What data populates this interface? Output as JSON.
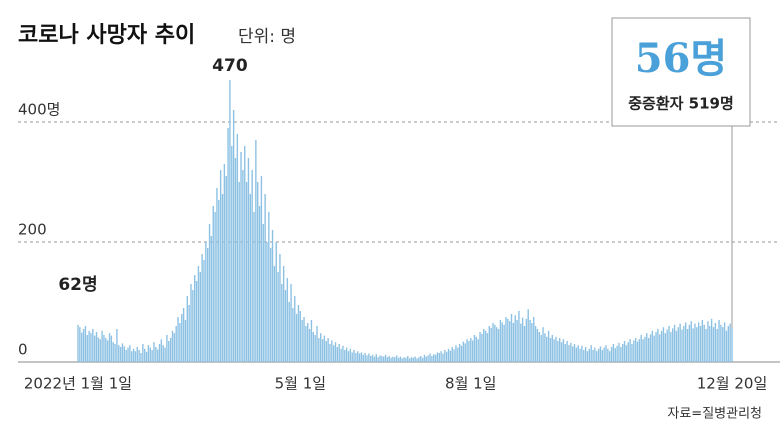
{
  "chart_data": {
    "type": "bar",
    "title": "코로나 사망자 추이",
    "unit_note": "단위: 명",
    "source": "자료=질병관리청",
    "annotation": "중증환자 519명",
    "color": "#8cc1e4",
    "highlight_color": "#4aa0d8",
    "grid": true,
    "ylim": [
      0,
      500
    ],
    "yticks": [
      0,
      200,
      {
        "value": 400,
        "label": "400명"
      }
    ],
    "categories": [
      "2022년 1월 1일",
      null,
      null,
      null,
      null,
      null,
      null,
      null,
      null,
      null,
      null,
      null,
      null,
      null,
      null,
      null,
      null,
      null,
      null,
      null,
      null,
      null,
      null,
      null,
      null,
      null,
      null,
      null,
      null,
      null,
      null,
      null,
      null,
      null,
      null,
      null,
      null,
      null,
      null,
      null,
      null,
      null,
      null,
      null,
      null,
      null,
      null,
      null,
      null,
      null,
      null,
      null,
      null,
      null,
      null,
      null,
      null,
      null,
      null,
      null,
      null,
      null,
      null,
      null,
      null,
      null,
      null,
      null,
      null,
      null,
      null,
      null,
      null,
      null,
      null,
      null,
      null,
      null,
      null,
      null,
      null,
      null,
      null,
      null,
      null,
      null,
      null,
      null,
      null,
      null,
      null,
      null,
      null,
      null,
      null,
      null,
      null,
      null,
      null,
      null,
      null,
      null,
      null,
      null,
      null,
      null,
      null,
      null,
      null,
      null,
      null,
      null,
      null,
      null,
      null,
      null,
      null,
      null,
      null,
      null,
      "5월 1일",
      null,
      null,
      null,
      null,
      null,
      null,
      null,
      null,
      null,
      null,
      null,
      null,
      null,
      null,
      null,
      null,
      null,
      null,
      null,
      null,
      null,
      null,
      null,
      null,
      null,
      null,
      null,
      null,
      null,
      null,
      null,
      null,
      null,
      null,
      null,
      null,
      null,
      null,
      null,
      null,
      null,
      null,
      null,
      null,
      null,
      null,
      null,
      null,
      null,
      null,
      null,
      null,
      null,
      null,
      null,
      null,
      null,
      null,
      null,
      null,
      null,
      null,
      null,
      null,
      null,
      null,
      null,
      null,
      null,
      null,
      null,
      null,
      null,
      null,
      null,
      null,
      null,
      null,
      null,
      null,
      null,
      null,
      null,
      null,
      null,
      null,
      null,
      null,
      null,
      null,
      null,
      "8월 1일",
      null,
      null,
      null,
      null,
      null,
      null,
      null,
      null,
      null,
      null,
      null,
      null,
      null,
      null,
      null,
      null,
      null,
      null,
      null,
      null,
      null,
      null,
      null,
      null,
      null,
      null,
      null,
      null,
      null,
      null,
      null,
      null,
      null,
      null,
      null,
      null,
      null,
      null,
      null,
      null,
      null,
      null,
      null,
      null,
      null,
      null,
      null,
      null,
      null,
      null,
      null,
      null,
      null,
      null,
      null,
      null,
      null,
      null,
      null,
      null,
      null,
      null,
      null,
      null,
      null,
      null,
      null,
      null,
      null,
      null,
      null,
      null,
      null,
      null,
      null,
      null,
      null,
      null,
      null,
      null,
      null,
      null,
      null,
      null,
      null,
      null,
      null,
      null,
      null,
      null,
      null,
      null,
      null,
      null,
      null,
      null,
      null,
      null,
      null,
      null,
      null,
      null,
      null,
      null,
      null,
      null,
      null,
      null,
      null,
      null,
      null,
      null,
      null,
      null,
      null,
      null,
      null,
      null,
      null,
      null,
      null,
      null,
      null,
      null,
      null,
      null,
      null,
      null,
      null,
      null,
      null,
      null,
      null,
      null,
      null,
      null,
      null,
      null,
      null,
      null,
      "12월 20일"
    ],
    "values": [
      62,
      58,
      49,
      55,
      60,
      45,
      52,
      48,
      55,
      44,
      50,
      41,
      38,
      52,
      45,
      40,
      36,
      48,
      44,
      33,
      30,
      55,
      28,
      25,
      31,
      26,
      20,
      24,
      28,
      18,
      22,
      18,
      25,
      20,
      15,
      30,
      22,
      17,
      28,
      24,
      20,
      33,
      25,
      21,
      30,
      38,
      28,
      24,
      45,
      35,
      40,
      52,
      48,
      60,
      75,
      65,
      80,
      90,
      70,
      110,
      95,
      130,
      120,
      145,
      135,
      160,
      150,
      180,
      170,
      200,
      190,
      230,
      210,
      260,
      250,
      290,
      270,
      320,
      280,
      330,
      310,
      390,
      470,
      360,
      420,
      340,
      380,
      300,
      350,
      320,
      360,
      300,
      340,
      280,
      320,
      250,
      370,
      300,
      260,
      310,
      230,
      280,
      200,
      250,
      190,
      220,
      160,
      200,
      150,
      180,
      130,
      160,
      120,
      140,
      100,
      130,
      90,
      110,
      80,
      95,
      85,
      70,
      75,
      60,
      65,
      55,
      70,
      50,
      45,
      60,
      40,
      48,
      38,
      44,
      35,
      40,
      30,
      36,
      28,
      33,
      25,
      30,
      22,
      27,
      20,
      24,
      18,
      22,
      16,
      20,
      15,
      18,
      14,
      16,
      12,
      15,
      11,
      14,
      10,
      12,
      9,
      13,
      8,
      11,
      10,
      9,
      12,
      8,
      10,
      7,
      9,
      8,
      11,
      7,
      9,
      6,
      8,
      7,
      10,
      6,
      8,
      7,
      9,
      6,
      8,
      10,
      7,
      12,
      9,
      11,
      14,
      10,
      13,
      12,
      16,
      15,
      18,
      14,
      20,
      17,
      22,
      19,
      25,
      21,
      28,
      24,
      30,
      27,
      34,
      31,
      38,
      35,
      40,
      36,
      45,
      42,
      38,
      50,
      47,
      55,
      52,
      48,
      60,
      57,
      65,
      62,
      58,
      55,
      70,
      66,
      62,
      75,
      72,
      68,
      80,
      65,
      78,
      70,
      85,
      64,
      74,
      60,
      72,
      88,
      70,
      65,
      75,
      60,
      55,
      50,
      45,
      58,
      48,
      42,
      52,
      40,
      45,
      38,
      42,
      35,
      40,
      33,
      38,
      30,
      35,
      28,
      32,
      26,
      30,
      24,
      28,
      22,
      27,
      20,
      25,
      18,
      22,
      28,
      20,
      24,
      18,
      22,
      26,
      20,
      24,
      28,
      22,
      18,
      25,
      30,
      23,
      27,
      32,
      25,
      30,
      35,
      28,
      33,
      38,
      30,
      36,
      40,
      34,
      38,
      45,
      38,
      42,
      48,
      40,
      46,
      52,
      44,
      50,
      55,
      46,
      52,
      58,
      48,
      54,
      60,
      50,
      56,
      62,
      52,
      58,
      64,
      54,
      60,
      66,
      55,
      62,
      68,
      56,
      64,
      58,
      66,
      60,
      70,
      62,
      55,
      68,
      60,
      72,
      58,
      65,
      55,
      70,
      62,
      58,
      66,
      52,
      60,
      64,
      56
    ],
    "value_labels": [
      "62명",
      null,
      null,
      null,
      null,
      null,
      null,
      null,
      null,
      null,
      null,
      null,
      null,
      null,
      null,
      null,
      null,
      null,
      null,
      null,
      null,
      null,
      null,
      null,
      null,
      null,
      null,
      null,
      null,
      null,
      null,
      null,
      null,
      null,
      null,
      null,
      null,
      null,
      null,
      null,
      null,
      null,
      null,
      null,
      null,
      null,
      null,
      null,
      null,
      null,
      null,
      null,
      null,
      null,
      null,
      null,
      null,
      null,
      null,
      null,
      null,
      null,
      null,
      null,
      null,
      null,
      null,
      null,
      null,
      null,
      null,
      null,
      null,
      null,
      null,
      null,
      null,
      null,
      null,
      null,
      null,
      null,
      null,
      null,
      null,
      null,
      null,
      null,
      null,
      null,
      null,
      null,
      null,
      null,
      null,
      null,
      null,
      null,
      null,
      null,
      null,
      null,
      null,
      null,
      null,
      null,
      null,
      null,
      null,
      null,
      null,
      null,
      null,
      null,
      null,
      null,
      null,
      null,
      null,
      null,
      null,
      null,
      null,
      null,
      null,
      null,
      null,
      null,
      null,
      null,
      null,
      null,
      null,
      null,
      null,
      null,
      null,
      null,
      null,
      null,
      null,
      null,
      null,
      null,
      null,
      null,
      null,
      null,
      null,
      null,
      null,
      null,
      null,
      null,
      null,
      null,
      null,
      null,
      null,
      null,
      null,
      null,
      null,
      null,
      null,
      null,
      null,
      null,
      null,
      null,
      null,
      null,
      null,
      null,
      null,
      null,
      null,
      null,
      null,
      null,
      null,
      null,
      null,
      null,
      null,
      null,
      null,
      null,
      null,
      null,
      null,
      null,
      null,
      null,
      null,
      null,
      null,
      null,
      null,
      null,
      null,
      null,
      null,
      null,
      null,
      null,
      null,
      null,
      null,
      null,
      null,
      null,
      null,
      null,
      null,
      null,
      null,
      null,
      null,
      null,
      null,
      null,
      null,
      null,
      null,
      null,
      null,
      null,
      null,
      null,
      null,
      null,
      null,
      null,
      null,
      null,
      null,
      null,
      null,
      null,
      null,
      null,
      null,
      null,
      null,
      null,
      null,
      null,
      null,
      null,
      null,
      null,
      null,
      null,
      null,
      null,
      null,
      null,
      null,
      null,
      null,
      null,
      null,
      null,
      null,
      null,
      null,
      null,
      null,
      null,
      null,
      null,
      null,
      null,
      null,
      null,
      null,
      null,
      null,
      null,
      null,
      null,
      null,
      null,
      null,
      null,
      null,
      null,
      null,
      null,
      null,
      null,
      null,
      null,
      null,
      null,
      null,
      null,
      null,
      null,
      null,
      null,
      null,
      null,
      null,
      null,
      null,
      null,
      null,
      null,
      null,
      null,
      null,
      null,
      null,
      null,
      null,
      null,
      null,
      null,
      null,
      null,
      null,
      null,
      null,
      null,
      null,
      null,
      null,
      null,
      null,
      null,
      null,
      null,
      null,
      null,
      null,
      null,
      null,
      null,
      null,
      null,
      null,
      null,
      null,
      null,
      null,
      null,
      null,
      null,
      null,
      null,
      null,
      "56명"
    ]
  }
}
